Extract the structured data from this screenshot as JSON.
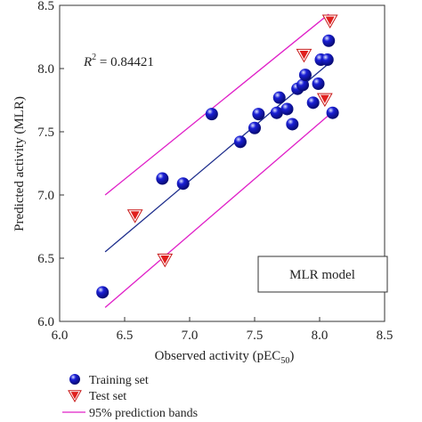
{
  "chart_data": {
    "type": "scatter",
    "xlabel": "Observed activity (pEC",
    "xlabel_sub": "50",
    "xlabel_end": ")",
    "ylabel": "Predicted activity (MLR)",
    "xlim": [
      6.0,
      8.5
    ],
    "ylim": [
      6.0,
      8.5
    ],
    "xticks": [
      "6.0",
      "6.5",
      "7.0",
      "7.5",
      "8.0",
      "8.5"
    ],
    "yticks": [
      "6.0",
      "6.5",
      "7.0",
      "7.5",
      "8.0",
      "8.5"
    ],
    "r2_label": "R",
    "r2_sup": "2",
    "r2_value": " = 0.84421",
    "model_label": "MLR model",
    "series": [
      {
        "name": "Training set",
        "marker": "sphere",
        "color": "#1a1fd6",
        "points": [
          [
            6.33,
            6.23
          ],
          [
            6.79,
            7.13
          ],
          [
            6.95,
            7.09
          ],
          [
            7.17,
            7.64
          ],
          [
            7.39,
            7.42
          ],
          [
            7.5,
            7.53
          ],
          [
            7.53,
            7.64
          ],
          [
            7.67,
            7.65
          ],
          [
            7.69,
            7.77
          ],
          [
            7.75,
            7.68
          ],
          [
            7.79,
            7.56
          ],
          [
            7.83,
            7.84
          ],
          [
            7.87,
            7.87
          ],
          [
            7.89,
            7.95
          ],
          [
            7.95,
            7.73
          ],
          [
            7.99,
            7.88
          ],
          [
            8.01,
            8.07
          ],
          [
            8.06,
            8.07
          ],
          [
            8.07,
            8.22
          ],
          [
            8.1,
            7.65
          ]
        ]
      },
      {
        "name": "Test set",
        "marker": "triangle-down",
        "color": "#e0201e",
        "points": [
          [
            6.58,
            6.84
          ],
          [
            6.81,
            6.49
          ],
          [
            7.88,
            8.11
          ],
          [
            8.04,
            7.76
          ],
          [
            8.08,
            8.38
          ]
        ]
      },
      {
        "name": "95% prediction bands",
        "type": "line",
        "color": "#e020c8",
        "upper": [
          [
            6.35,
            7.0
          ],
          [
            8.07,
            8.43
          ]
        ],
        "lower": [
          [
            6.35,
            6.11
          ],
          [
            8.08,
            7.64
          ]
        ]
      }
    ],
    "fit_line": {
      "color": "#1e2e8c",
      "points": [
        [
          6.35,
          6.55
        ],
        [
          8.07,
          8.04
        ]
      ]
    }
  }
}
